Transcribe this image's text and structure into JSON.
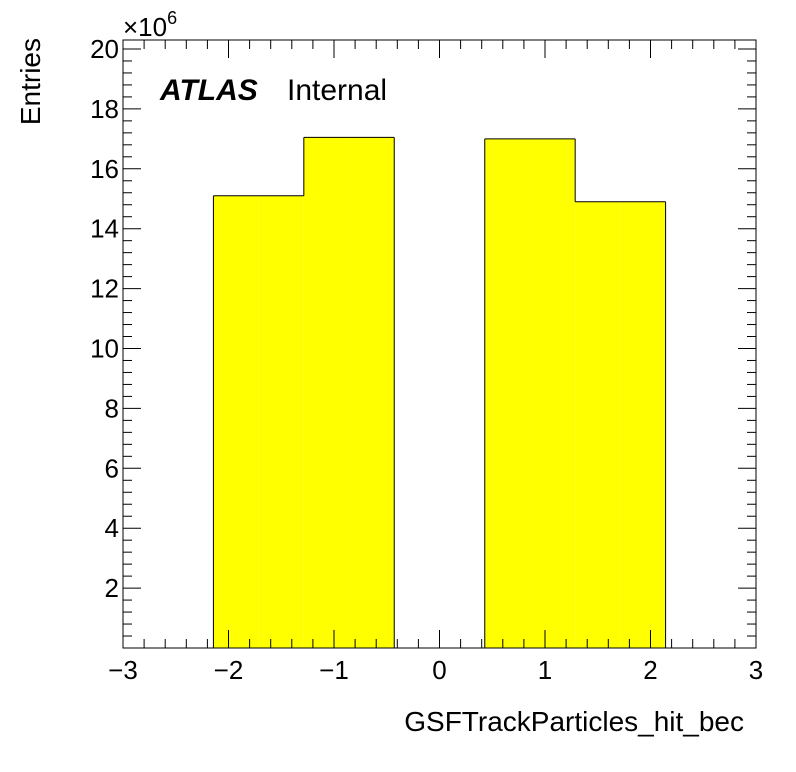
{
  "chart_data": {
    "type": "bar",
    "histogram": true,
    "bin_edges": [
      -3.0,
      -2.571,
      -2.143,
      -1.714,
      -1.286,
      -0.857,
      -0.429,
      0.0,
      0.429,
      0.857,
      1.286,
      1.714,
      2.143,
      2.571,
      3.0
    ],
    "bins": [
      {
        "x_low": -3.0,
        "x_high": -2.571,
        "value": 0
      },
      {
        "x_low": -2.571,
        "x_high": -2.143,
        "value": 0
      },
      {
        "x_low": -2.143,
        "x_high": -1.714,
        "value": 15.1
      },
      {
        "x_low": -1.714,
        "x_high": -1.286,
        "value": 15.1
      },
      {
        "x_low": -1.286,
        "x_high": -0.857,
        "value": 17.05
      },
      {
        "x_low": -0.857,
        "x_high": -0.429,
        "value": 17.05
      },
      {
        "x_low": -0.429,
        "x_high": 0.0,
        "value": 0
      },
      {
        "x_low": 0.0,
        "x_high": 0.429,
        "value": 0
      },
      {
        "x_low": 0.429,
        "x_high": 0.857,
        "value": 17.0
      },
      {
        "x_low": 0.857,
        "x_high": 1.286,
        "value": 17.0
      },
      {
        "x_low": 1.286,
        "x_high": 1.714,
        "value": 14.9
      },
      {
        "x_low": 1.714,
        "x_high": 2.143,
        "value": 14.9
      },
      {
        "x_low": 2.143,
        "x_high": 2.571,
        "value": 0
      },
      {
        "x_low": 2.571,
        "x_high": 3.0,
        "value": 0
      }
    ],
    "value_multiplier_label": "×10",
    "value_multiplier_exponent": "6",
    "xlabel": "GSFTrackParticles_hit_bec",
    "ylabel": "Entries",
    "xlim": [
      -3,
      3
    ],
    "ylim": [
      0,
      20.3
    ],
    "x_ticks": [
      -3,
      -2,
      -1,
      0,
      1,
      2,
      3
    ],
    "x_tick_labels": [
      "−3",
      "−2",
      "−1",
      "0",
      "1",
      "2",
      "3"
    ],
    "y_ticks": [
      2,
      4,
      6,
      8,
      10,
      12,
      14,
      16,
      18,
      20
    ],
    "y_tick_labels": [
      "2",
      "4",
      "6",
      "8",
      "10",
      "12",
      "14",
      "16",
      "18",
      "20"
    ],
    "grid": false,
    "fill_color": "#ffff00",
    "line_color": "#000000"
  },
  "labels": {
    "atlas": "ATLAS",
    "internal": "Internal"
  }
}
